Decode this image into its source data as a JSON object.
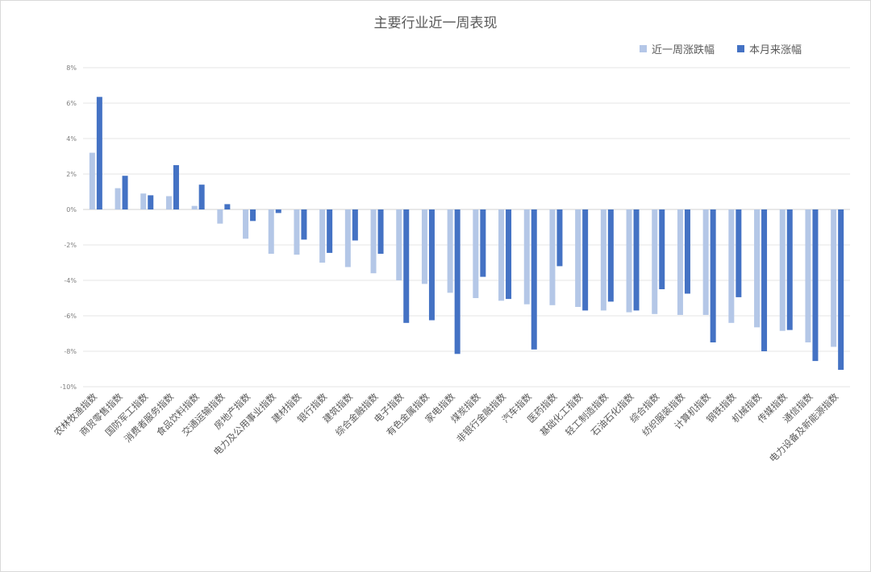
{
  "chart_data": {
    "type": "bar",
    "title": "主要行业近一周表现",
    "xlabel": "",
    "ylabel": "",
    "ylim": [
      -10,
      8
    ],
    "yticks": [
      8,
      6,
      4,
      2,
      0,
      -2,
      -4,
      -6,
      -8,
      -10
    ],
    "ytick_labels": [
      "8%",
      "6%",
      "4%",
      "2%",
      "0%",
      "-2%",
      "-4%",
      "-6%",
      "-8%",
      "-10%"
    ],
    "grid": true,
    "legend_position": "top-right",
    "categories": [
      "农林牧渔指数",
      "商贸零售指数",
      "国防军工指数",
      "消费者服务指数",
      "食品饮料指数",
      "交通运输指数",
      "房地产指数",
      "电力及公用事业指数",
      "建材指数",
      "银行指数",
      "建筑指数",
      "综合金融指数",
      "电子指数",
      "有色金属指数",
      "家电指数",
      "煤炭指数",
      "非银行金融指数",
      "汽车指数",
      "医药指数",
      "基础化工指数",
      "轻工制造指数",
      "石油石化指数",
      "综合指数",
      "纺织服装指数",
      "计算机指数",
      "钢铁指数",
      "机械指数",
      "传媒指数",
      "通信指数",
      "电力设备及新能源指数"
    ],
    "series": [
      {
        "name": "近一周涨跌幅",
        "color": "#b4c7e7",
        "values": [
          3.2,
          1.2,
          0.9,
          0.75,
          0.2,
          -0.8,
          -1.65,
          -2.5,
          -2.55,
          -3.0,
          -3.25,
          -3.6,
          -4.0,
          -4.2,
          -4.7,
          -5.0,
          -5.15,
          -5.35,
          -5.4,
          -5.5,
          -5.7,
          -5.8,
          -5.9,
          -5.95,
          -5.95,
          -6.4,
          -6.65,
          -6.85,
          -7.5,
          -7.75
        ]
      },
      {
        "name": "本月来涨幅",
        "color": "#4472c4",
        "values": [
          6.35,
          1.9,
          0.8,
          2.5,
          1.4,
          0.3,
          -0.65,
          -0.2,
          -1.7,
          -2.45,
          -1.75,
          -2.5,
          -6.4,
          -6.25,
          -8.15,
          -3.8,
          -5.05,
          -7.9,
          -3.2,
          -5.7,
          -5.2,
          -5.7,
          -4.5,
          -4.75,
          -7.5,
          -4.95,
          -8.0,
          -6.8,
          -8.55,
          -9.05
        ]
      }
    ]
  }
}
